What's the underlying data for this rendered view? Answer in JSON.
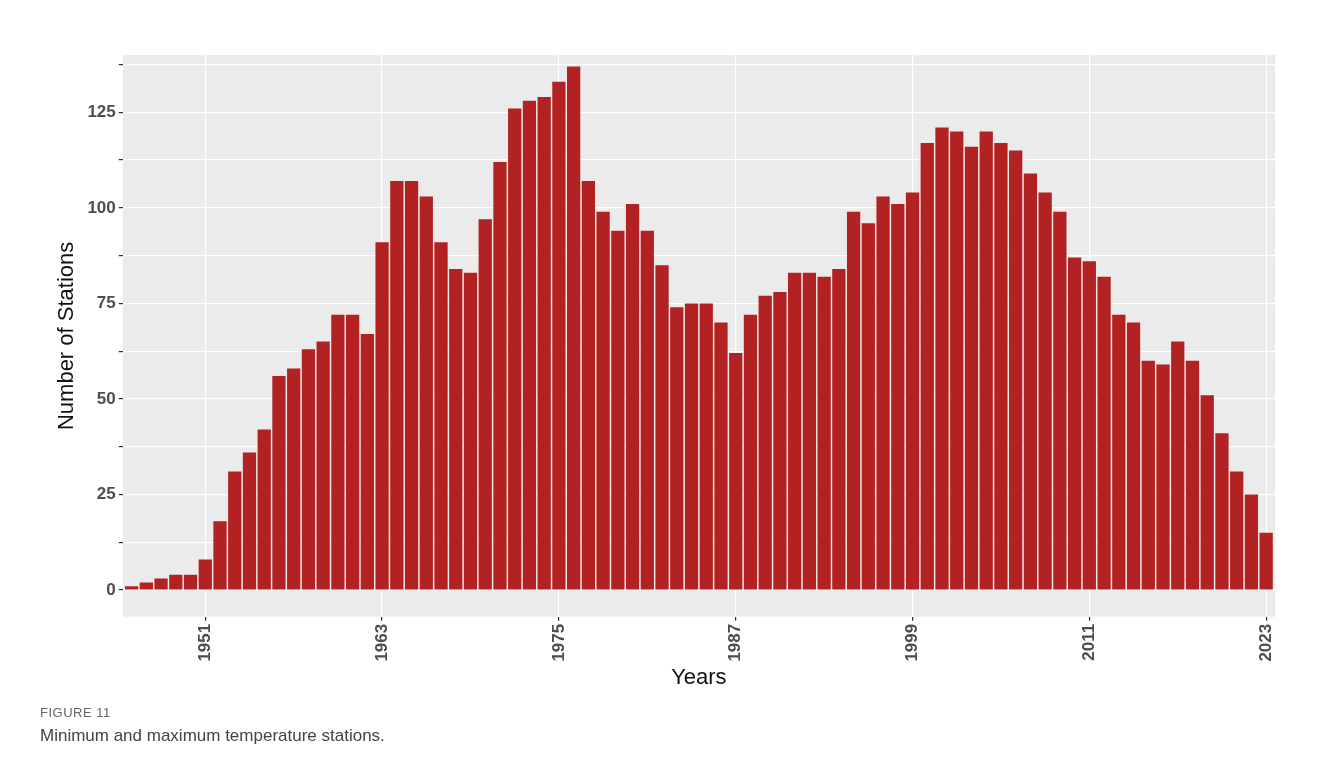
{
  "chart_data": {
    "type": "bar",
    "xlabel": "Years",
    "ylabel": "Number of Stations",
    "x": [
      1946,
      1947,
      1948,
      1949,
      1950,
      1951,
      1952,
      1953,
      1954,
      1955,
      1956,
      1957,
      1958,
      1959,
      1960,
      1961,
      1962,
      1963,
      1964,
      1965,
      1966,
      1967,
      1968,
      1969,
      1970,
      1971,
      1972,
      1973,
      1974,
      1975,
      1976,
      1977,
      1978,
      1979,
      1980,
      1981,
      1982,
      1983,
      1984,
      1985,
      1986,
      1987,
      1988,
      1989,
      1990,
      1991,
      1992,
      1993,
      1994,
      1995,
      1996,
      1997,
      1998,
      1999,
      2000,
      2001,
      2002,
      2003,
      2004,
      2005,
      2006,
      2007,
      2008,
      2009,
      2010,
      2011,
      2012,
      2013,
      2014,
      2015,
      2016,
      2017,
      2018,
      2019,
      2020,
      2021,
      2022,
      2023
    ],
    "values": [
      1,
      2,
      3,
      4,
      4,
      8,
      18,
      31,
      36,
      42,
      56,
      58,
      63,
      65,
      72,
      72,
      67,
      91,
      107,
      107,
      103,
      91,
      84,
      83,
      97,
      112,
      126,
      128,
      129,
      133,
      137,
      107,
      99,
      94,
      101,
      94,
      85,
      74,
      75,
      75,
      70,
      62,
      72,
      77,
      78,
      83,
      83,
      82,
      84,
      99,
      96,
      103,
      101,
      104,
      117,
      121,
      120,
      116,
      120,
      117,
      115,
      109,
      104,
      99,
      87,
      86,
      82,
      72,
      70,
      60,
      59,
      65,
      60,
      51,
      41,
      31,
      25,
      15
    ],
    "color": "#b22222",
    "xlim": [
      1945.4,
      2023.6
    ],
    "xticks": [
      1951,
      1963,
      1975,
      1987,
      1999,
      2011,
      2023
    ],
    "ylim": [
      -7,
      140
    ],
    "yticks": [
      0,
      {
        "value": 12.5,
        "label": null
      },
      25,
      {
        "value": 37.5,
        "label": null
      },
      50,
      {
        "value": 62.5,
        "label": null
      },
      75,
      {
        "value": 87.5,
        "label": null
      },
      100,
      {
        "value": 112.5,
        "label": null
      },
      125,
      {
        "value": 137.5,
        "label": null
      }
    ],
    "grid": true,
    "annotations": [
      "FIGURE 11",
      "Minimum and maximum temperature stations."
    ]
  }
}
